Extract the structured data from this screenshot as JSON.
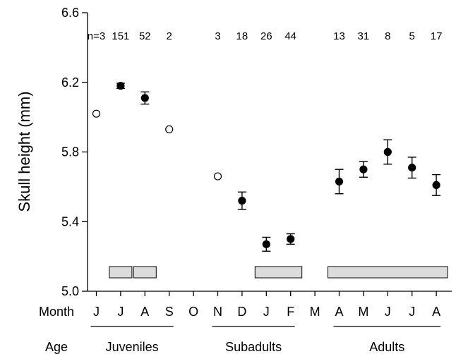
{
  "chart_data": {
    "type": "scatter",
    "ylabel": "Skull height (mm)",
    "ylim": [
      5.0,
      6.6
    ],
    "yticks": [
      5.0,
      5.4,
      5.8,
      6.2,
      6.6
    ],
    "ytick_labels": [
      "5.0",
      "5.4",
      "5.8",
      "6.2",
      "6.6"
    ],
    "month_row_label": "Month",
    "months": [
      "J",
      "J",
      "A",
      "S",
      "O",
      "N",
      "D",
      "J",
      "F",
      "M",
      "A",
      "M",
      "J",
      "J",
      "A"
    ],
    "age_row_label": "Age",
    "age_groups": [
      {
        "label": "Juveniles",
        "from_index": 0,
        "to_index": 3
      },
      {
        "label": "Subadults",
        "from_index": 5,
        "to_index": 8
      },
      {
        "label": "Adults",
        "from_index": 10,
        "to_index": 14
      }
    ],
    "points": [
      {
        "month_index": 0,
        "month": "J",
        "n_label": "n=3",
        "y": 6.02,
        "err": null,
        "filled": false
      },
      {
        "month_index": 1,
        "month": "J",
        "n_label": "151",
        "y": 6.18,
        "err": 0.015,
        "filled": true
      },
      {
        "month_index": 2,
        "month": "A",
        "n_label": "52",
        "y": 6.11,
        "err": 0.035,
        "filled": true
      },
      {
        "month_index": 3,
        "month": "S",
        "n_label": "2",
        "y": 5.93,
        "err": null,
        "filled": false
      },
      {
        "month_index": 5,
        "month": "N",
        "n_label": "3",
        "y": 5.66,
        "err": null,
        "filled": false
      },
      {
        "month_index": 6,
        "month": "D",
        "n_label": "18",
        "y": 5.52,
        "err": 0.05,
        "filled": true
      },
      {
        "month_index": 7,
        "month": "J",
        "n_label": "26",
        "y": 5.27,
        "err": 0.04,
        "filled": true
      },
      {
        "month_index": 8,
        "month": "F",
        "n_label": "44",
        "y": 5.3,
        "err": 0.03,
        "filled": true
      },
      {
        "month_index": 10,
        "month": "A",
        "n_label": "13",
        "y": 5.63,
        "err": 0.07,
        "filled": true
      },
      {
        "month_index": 11,
        "month": "M",
        "n_label": "31",
        "y": 5.7,
        "err": 0.045,
        "filled": true
      },
      {
        "month_index": 12,
        "month": "J",
        "n_label": "8",
        "y": 5.8,
        "err": 0.07,
        "filled": true
      },
      {
        "month_index": 13,
        "month": "J",
        "n_label": "5",
        "y": 5.71,
        "err": 0.06,
        "filled": true
      },
      {
        "month_index": 14,
        "month": "A",
        "n_label": "17",
        "y": 5.61,
        "err": 0.06,
        "filled": true
      }
    ],
    "shaded_bars": [
      {
        "from_month_index": 1,
        "to_month_index": 1
      },
      {
        "from_month_index": 2,
        "to_month_index": 2
      },
      {
        "from_month_index": 7,
        "to_month_index": 8
      },
      {
        "from_month_index": 10,
        "to_month_index": 14
      }
    ],
    "colors": {
      "marker": "#000000",
      "bar_fill": "#dcdcdc",
      "bar_stroke": "#000000",
      "axis": "#000000"
    }
  }
}
